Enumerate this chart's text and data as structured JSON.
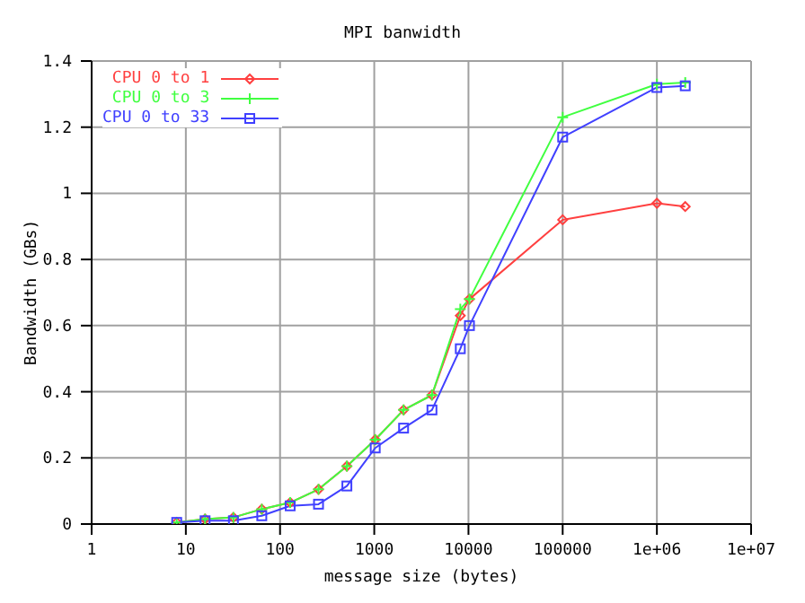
{
  "chart_data": {
    "type": "line",
    "title": "MPI banwidth",
    "xlabel": "message size (bytes)",
    "ylabel": "Bandwidth (GBs)",
    "log": "x",
    "grid": true,
    "legend": "top left",
    "xlim": [
      1,
      10000000
    ],
    "ylim": [
      0,
      1.4
    ],
    "xticks": [
      1,
      10,
      100,
      1000,
      10000,
      100000,
      {
        "value": 1000000,
        "label": "1e+06"
      },
      {
        "value": 10000000,
        "label": "1e+07"
      }
    ],
    "yticks": [
      0,
      0.2,
      0.4,
      0.6,
      0.8,
      1,
      1.2,
      1.4
    ],
    "x": [
      8,
      16,
      32,
      64,
      128,
      256,
      512,
      1024,
      2048,
      4096,
      8192,
      10240,
      100000,
      1000000,
      2000000
    ],
    "series": [
      {
        "name": "CPU 0 to 1",
        "color": "#ff4040",
        "marker": "diamond",
        "values": [
          0.005,
          0.015,
          0.02,
          0.045,
          0.065,
          0.105,
          0.175,
          0.255,
          0.345,
          0.39,
          0.63,
          0.68,
          0.92,
          0.97,
          0.96
        ]
      },
      {
        "name": "CPU 0 to 3",
        "color": "#40ff40",
        "marker": "cross",
        "values": [
          0.005,
          0.015,
          0.02,
          0.045,
          0.065,
          0.105,
          0.175,
          0.255,
          0.345,
          0.39,
          0.65,
          0.68,
          1.23,
          1.33,
          1.335
        ]
      },
      {
        "name": "CPU 0 to 33",
        "color": "#4040ff",
        "marker": "square",
        "values": [
          0.005,
          0.01,
          0.01,
          0.025,
          0.055,
          0.06,
          0.115,
          0.23,
          0.29,
          0.345,
          0.53,
          0.6,
          1.17,
          1.32,
          1.325
        ]
      }
    ]
  }
}
